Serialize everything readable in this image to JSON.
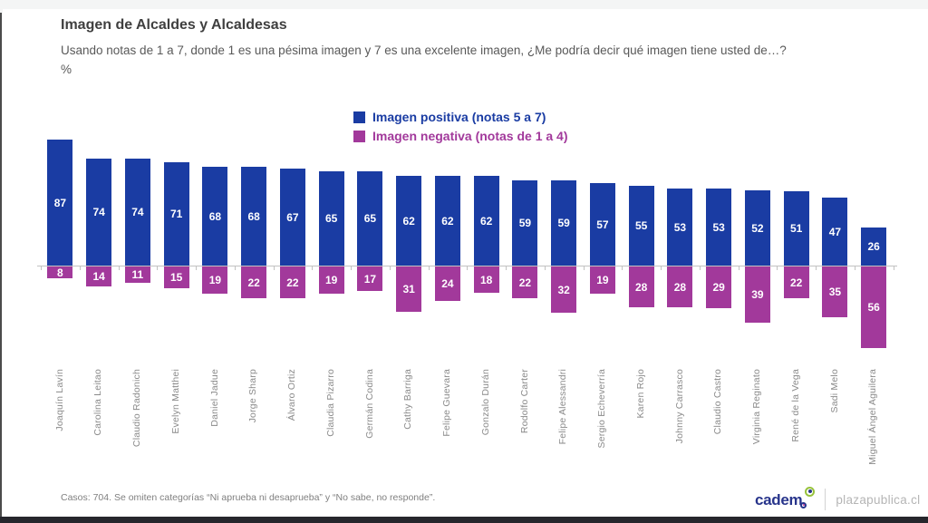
{
  "header": {
    "title": "Imagen de Alcaldes y Alcaldesas",
    "subtitle": "Usando notas de 1 a 7, donde 1 es una pésima imagen y 7 es una excelente imagen, ¿Me podría decir qué imagen tiene usted de…?",
    "unit_label": "%"
  },
  "chart_data": {
    "type": "bar",
    "title": "Imagen de Alcaldes y Alcaldesas",
    "unit": "%",
    "orientation": "vertical-diverging",
    "grid": false,
    "legend_position": "top-center",
    "value_labels": "inside-white-bold",
    "categories": [
      "Joaquín Lavín",
      "Carolina Leitao",
      "Claudio Radonich",
      "Evelyn Matthei",
      "Daniel Jadue",
      "Jorge Sharp",
      "Álvaro Ortiz",
      "Claudia Pizarro",
      "Germán Codina",
      "Cathy Barriga",
      "Felipe Guevara",
      "Gonzalo Durán",
      "Rodolfo Carter",
      "Felipe Alessandri",
      "Sergio Echeverría",
      "Karen Rojo",
      "Johnny Carrasco",
      "Claudio Castro",
      "Virginia Reginato",
      "René de la Vega",
      "Sadi Melo",
      "Miguel Ángel Aguilera"
    ],
    "series": [
      {
        "name": "Imagen positiva (notas 5 a 7)",
        "color": "#1a3ca3",
        "direction": "up",
        "values": [
          87,
          74,
          74,
          71,
          68,
          68,
          67,
          65,
          65,
          62,
          62,
          62,
          59,
          59,
          57,
          55,
          53,
          53,
          52,
          51,
          47,
          26
        ]
      },
      {
        "name": "Imagen negativa (notas de 1 a 4)",
        "color": "#a2399b",
        "direction": "down",
        "values": [
          8,
          14,
          11,
          15,
          19,
          22,
          22,
          19,
          17,
          31,
          24,
          18,
          22,
          32,
          19,
          28,
          28,
          29,
          39,
          22,
          35,
          56
        ]
      }
    ]
  },
  "footer": {
    "note": "Casos: 704. Se omiten categorías “Ni aprueba ni desaprueba” y “No sabe, no responde”.",
    "brand": "cadem",
    "site": "plazapublica.cl"
  }
}
